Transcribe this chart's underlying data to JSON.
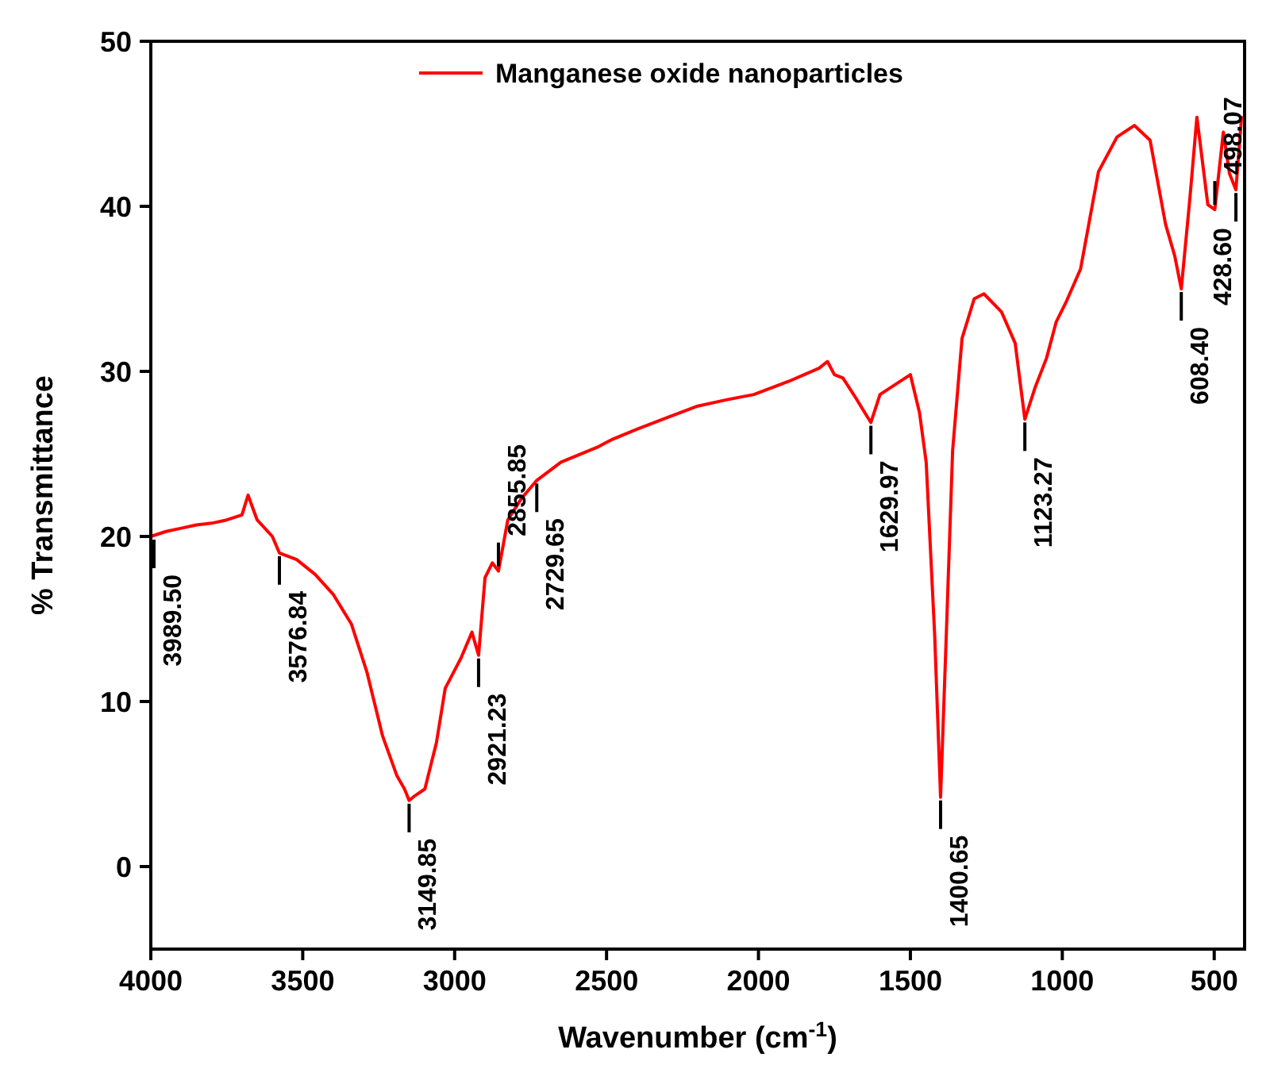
{
  "chart_data": {
    "type": "line",
    "xlabel": "Wavenumber (cm$^{-1}$)",
    "ylabel": "% Transmittance",
    "xlim": [
      4000,
      400
    ],
    "xticks": [
      4000,
      3500,
      3000,
      2500,
      2000,
      1500,
      1000,
      500
    ],
    "ylim": [
      -5,
      50
    ],
    "yticks": [
      0,
      10,
      20,
      30,
      40,
      50
    ],
    "legend": "top right",
    "grid": false,
    "marker": "none",
    "line_style": "solid",
    "series": [
      {
        "name": "Manganese oxide nanoparticles",
        "color": "#ff0000",
        "x": [
          4000,
          3950,
          3900,
          3850,
          3800,
          3750,
          3700,
          3680,
          3650,
          3600,
          3576.84,
          3520,
          3459,
          3400,
          3340,
          3289,
          3237,
          3190,
          3165,
          3149.85,
          3130,
          3098,
          3060,
          3031,
          2980,
          2943,
          2921.23,
          2900,
          2876,
          2855.85,
          2825,
          2780,
          2729.65,
          2650,
          2531,
          2479,
          2400,
          2300,
          2200,
          2100,
          2015,
          1900,
          1800,
          1773,
          1750,
          1722,
          1680,
          1629.97,
          1600,
          1550,
          1500,
          1470,
          1448,
          1420,
          1400.65,
          1380,
          1361,
          1330,
          1290,
          1258,
          1200,
          1155,
          1123.27,
          1090,
          1052,
          1020,
          985,
          940,
          881,
          820,
          763,
          711,
          660,
          630,
          608.4,
          580,
          557,
          521,
          498.07,
          470,
          450,
          428.6,
          410
        ],
        "values": [
          20.0,
          20.3,
          20.5,
          20.7,
          20.8,
          21.0,
          21.3,
          22.5,
          21.0,
          20.0,
          19.0,
          18.6,
          17.7,
          16.5,
          14.7,
          11.8,
          7.9,
          5.5,
          4.7,
          4.0,
          4.3,
          4.7,
          7.5,
          10.8,
          12.6,
          14.2,
          12.8,
          17.5,
          18.4,
          17.9,
          21.0,
          22.3,
          23.4,
          24.5,
          25.4,
          25.9,
          26.5,
          27.2,
          27.9,
          28.3,
          28.6,
          29.4,
          30.2,
          30.6,
          29.8,
          29.6,
          28.4,
          26.9,
          28.6,
          29.2,
          29.8,
          27.5,
          24.5,
          14.0,
          4.2,
          15.0,
          25.2,
          32.0,
          34.4,
          34.7,
          33.6,
          31.7,
          27.1,
          29.0,
          30.8,
          33.0,
          34.3,
          36.2,
          42.1,
          44.2,
          44.9,
          44.0,
          38.9,
          37.0,
          35.0,
          40.5,
          45.4,
          40.1,
          39.8,
          44.5,
          42.0,
          41.0,
          45.4
        ]
      }
    ],
    "annotations": [
      {
        "text": "3989.50",
        "x": 3989.5,
        "y": 20.0
      },
      {
        "text": "3576.84",
        "x": 3576.84,
        "y": 19.0
      },
      {
        "text": "3149.85",
        "x": 3149.85,
        "y": 4.0
      },
      {
        "text": "2921.23",
        "x": 2921.23,
        "y": 12.8
      },
      {
        "text": "2855.85",
        "x": 2855.85,
        "y": 17.9
      },
      {
        "text": "2729.65",
        "x": 2729.65,
        "y": 23.4
      },
      {
        "text": "1629.97",
        "x": 1629.97,
        "y": 26.9
      },
      {
        "text": "1400.65",
        "x": 1400.65,
        "y": 4.2
      },
      {
        "text": "1123.27",
        "x": 1123.27,
        "y": 27.1
      },
      {
        "text": "608.40",
        "x": 608.4,
        "y": 35.0
      },
      {
        "text": "498.07",
        "x": 498.07,
        "y": 39.8
      },
      {
        "text": "428.60",
        "x": 428.6,
        "y": 41.0
      }
    ]
  }
}
